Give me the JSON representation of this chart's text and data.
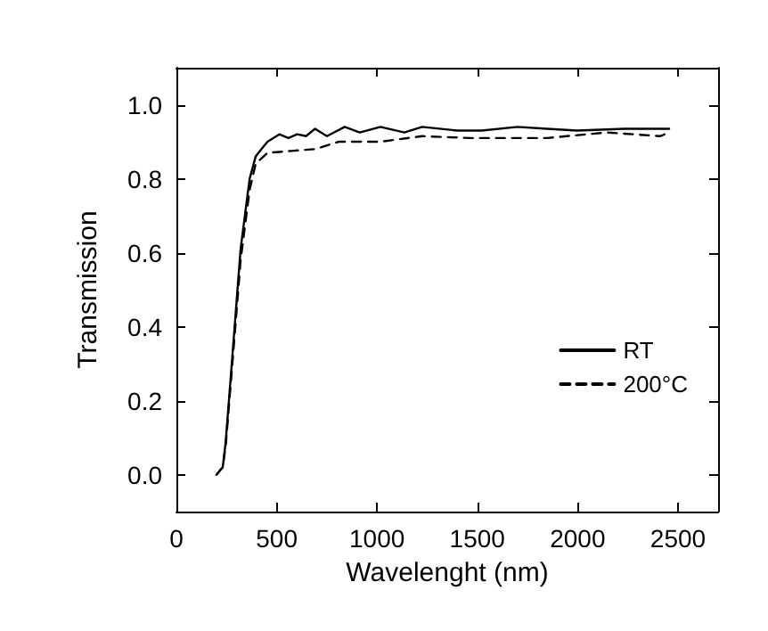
{
  "chart_data": {
    "type": "line",
    "xlabel": "Wavelenght (nm)",
    "ylabel": "Transmission",
    "xlim": [
      0,
      2700
    ],
    "xticks": [
      0,
      500,
      1000,
      1500,
      2000,
      2500
    ],
    "ylim": [
      -0.1,
      1.1
    ],
    "yticks": [
      {
        "value": 0,
        "label": "0.0"
      },
      {
        "value": 0.2,
        "label": "0.2"
      },
      {
        "value": 0.4,
        "label": "0.4"
      },
      {
        "value": 0.6,
        "label": "0.6"
      },
      {
        "value": 0.8,
        "label": "0.8"
      },
      {
        "value": 1,
        "label": "1.0"
      }
    ],
    "grid": false,
    "legend": "right",
    "marker": "none",
    "series": [
      {
        "name": "RT",
        "color": "#000000",
        "line_style": "solid",
        "x": [
          200,
          231,
          246,
          276,
          320,
          365,
          395,
          424,
          454,
          513,
          558,
          602,
          646,
          691,
          750,
          839,
          914,
          1017,
          1136,
          1225,
          1403,
          1522,
          1700,
          1848,
          1996,
          2233,
          2456
        ],
        "values": [
          0,
          0.02,
          0.09,
          0.3,
          0.61,
          0.8,
          0.86,
          0.88,
          0.9,
          0.92,
          0.91,
          0.92,
          0.915,
          0.935,
          0.915,
          0.94,
          0.925,
          0.94,
          0.925,
          0.94,
          0.93,
          0.93,
          0.94,
          0.935,
          0.93,
          0.935,
          0.935
        ]
      },
      {
        "name": "200°C",
        "color": "#000000",
        "line_style": "dashed",
        "x": [
          200,
          231,
          246,
          276,
          320,
          365,
          395,
          454,
          572,
          691,
          810,
          1017,
          1225,
          1463,
          1848,
          2144,
          2411,
          2456
        ],
        "values": [
          0,
          0.02,
          0.08,
          0.28,
          0.58,
          0.77,
          0.84,
          0.87,
          0.875,
          0.88,
          0.9,
          0.9,
          0.915,
          0.91,
          0.91,
          0.925,
          0.915,
          0.925
        ]
      }
    ]
  }
}
